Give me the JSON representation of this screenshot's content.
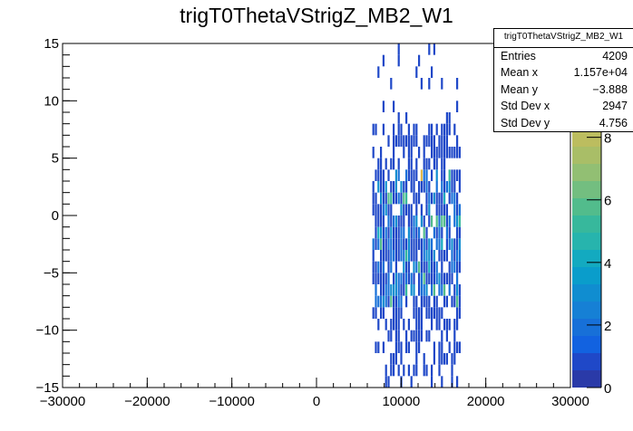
{
  "chart_data": {
    "type": "heatmap",
    "title": "trigT0ThetaVStrigZ_MB2_W1",
    "xlabel": "",
    "ylabel": "",
    "xlim": [
      -30000,
      30000
    ],
    "ylim": [
      -15,
      15
    ],
    "zlim": [
      0,
      11
    ],
    "x_ticks": [
      "−30000",
      "−20000",
      "−10000",
      "0",
      "10000",
      "20000",
      "30000"
    ],
    "x_tick_values": [
      -30000,
      -20000,
      -10000,
      0,
      10000,
      20000,
      30000
    ],
    "y_ticks": [
      "−15",
      "−10",
      "−5",
      "0",
      "5",
      "10",
      "15"
    ],
    "y_tick_values": [
      -15,
      -10,
      -5,
      0,
      5,
      10,
      15
    ],
    "z_ticks": [
      "0",
      "2",
      "4",
      "6",
      "8"
    ],
    "z_tick_values": [
      0,
      2,
      4,
      6,
      8
    ],
    "x_bins": 200,
    "y_bins": 30,
    "occupied_x_range": [
      6500,
      17000
    ],
    "typical_count": 1,
    "max_count": 9,
    "palette": [
      "#2a3aa8",
      "#1f48c8",
      "#1262e0",
      "#1770d8",
      "#1680d5",
      "#108dd0",
      "#0a9dcb",
      "#13aac0",
      "#27b4ad",
      "#37b89c",
      "#52bc8c",
      "#73be80",
      "#92bf73",
      "#a9be67",
      "#bcbd5f",
      "#cfba55",
      "#e0b94a",
      "#f0c43b",
      "#f8d82c",
      "#f9f00f"
    ],
    "stats": {
      "title": "trigT0ThetaVStrigZ_MB2_W1",
      "rows": [
        {
          "label": "Entries",
          "value": "4209"
        },
        {
          "label": "Mean x",
          "value": "1.157e+04"
        },
        {
          "label": "Mean y",
          "value": "−3.888"
        },
        {
          "label": "Std Dev x",
          "value": "2947"
        },
        {
          "label": "Std Dev y",
          "value": "4.756"
        }
      ]
    }
  }
}
